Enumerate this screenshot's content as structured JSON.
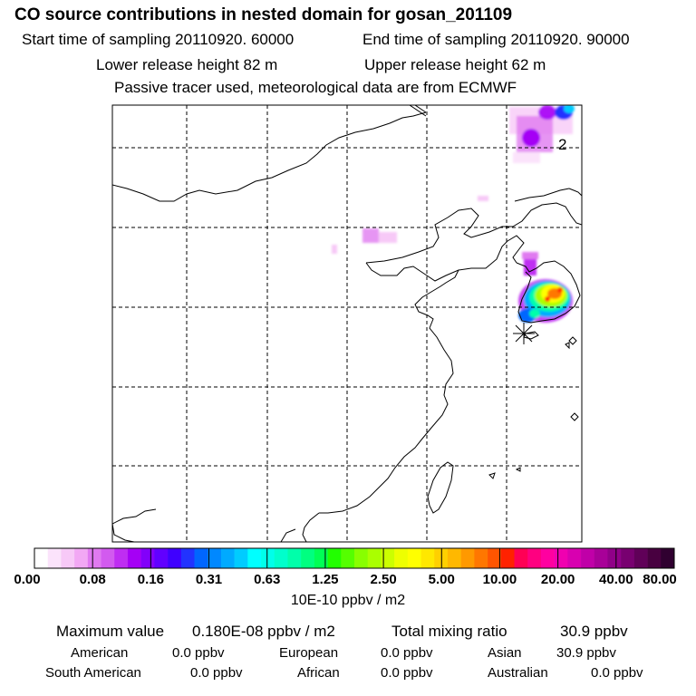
{
  "header": {
    "title": "CO  source contributions in nested domain for gosan_201109",
    "start_time": "Start time of sampling 20110920. 60000",
    "end_time": "End time of sampling 20110920. 90000",
    "lower_release": "Lower release height   82 m",
    "upper_release": "Upper release height   62 m",
    "tracer_note": "Passive tracer used, meteorological data are from ECMWF"
  },
  "map": {
    "site_label": "2",
    "plume_colors": [
      "#ff66ff",
      "#cc33ff",
      "#9900ff",
      "#2fa8ff",
      "#00e0c0",
      "#66ff33",
      "#ffff00",
      "#ff8800",
      "#ff2200"
    ]
  },
  "colorbar": {
    "labels": [
      "0.00",
      "0.08",
      "0.16",
      "0.31",
      "0.63",
      "1.25",
      "2.50",
      "5.00",
      "10.00",
      "20.00",
      "40.00",
      "80.00"
    ],
    "colors": [
      "#ffffff",
      "#fbe3fb",
      "#f7c9f7",
      "#f2a8f4",
      "#e07af0",
      "#d25aef",
      "#bf2df2",
      "#a500f5",
      "#8200fa",
      "#6100ff",
      "#3f00ff",
      "#2233ff",
      "#0066ff",
      "#0088ff",
      "#00aaff",
      "#00ccff",
      "#00ffff",
      "#00ffea",
      "#00ffcc",
      "#00ffaa",
      "#00ff80",
      "#00ff55",
      "#22ff00",
      "#55ff00",
      "#88ff00",
      "#aaff00",
      "#ccff00",
      "#eeff00",
      "#ffff00",
      "#ffe800",
      "#ffd000",
      "#ffb800",
      "#ff9900",
      "#ff7700",
      "#ff5500",
      "#ff2200",
      "#ff0055",
      "#ff0080",
      "#ff00a0",
      "#f000b0",
      "#d800b0",
      "#c000a8",
      "#a80098",
      "#900088",
      "#780070",
      "#600058",
      "#480040",
      "#300030"
    ],
    "units": "10E-10 ppbv / m2"
  },
  "stats": {
    "max_label": "Maximum value",
    "max_value": "0.180E-08 ppbv / m2",
    "total_label": "Total mixing ratio",
    "total_value": "30.9 ppbv",
    "regions": [
      {
        "name": "American",
        "value": "0.0 ppbv"
      },
      {
        "name": "European",
        "value": "0.0 ppbv"
      },
      {
        "name": "Asian",
        "value": "30.9 ppbv"
      },
      {
        "name": "South American",
        "value": "0.0 ppbv"
      },
      {
        "name": "African",
        "value": "0.0 ppbv"
      },
      {
        "name": "Australian",
        "value": "0.0 ppbv"
      }
    ]
  }
}
